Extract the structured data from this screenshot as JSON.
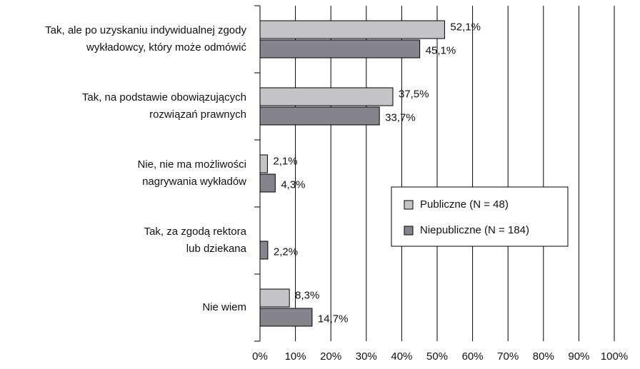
{
  "chart_data": {
    "type": "bar",
    "orientation": "horizontal",
    "categories": [
      [
        "Tak, ale po uzyskaniu indywidualnej zgody",
        "wykładowcy, który może odmówić"
      ],
      [
        "Tak, na podstawie obowiązujących",
        "rozwiązań prawnych"
      ],
      [
        "Nie, nie ma możliwości",
        "nagrywania wykładów"
      ],
      [
        "Tak, za zgodą rektora",
        "lub dziekana"
      ],
      [
        "Nie wiem"
      ]
    ],
    "series": [
      {
        "name": "Publiczne (N = 48)",
        "color": "#c4c4c8",
        "values": [
          52.1,
          37.5,
          2.1,
          null,
          8.3
        ],
        "value_labels": [
          "52,1%",
          "37,5%",
          "2,1%",
          null,
          "8,3%"
        ]
      },
      {
        "name": "Niepubliczne (N = 184)",
        "color": "#84848c",
        "values": [
          45.1,
          33.7,
          4.3,
          2.2,
          14.7
        ],
        "value_labels": [
          "45,1%",
          "33,7%",
          "4,3%",
          "2,2%",
          "14,7%"
        ]
      }
    ],
    "xlim": [
      0,
      100
    ],
    "xticks": [
      {
        "value": 0,
        "label": "0%"
      },
      {
        "value": 10,
        "label": "10%"
      },
      {
        "value": 20,
        "label": "20%"
      },
      {
        "value": 30,
        "label": "30%"
      },
      {
        "value": 40,
        "label": "40%"
      },
      {
        "value": 50,
        "label": "50%"
      },
      {
        "value": 60,
        "label": "60%"
      },
      {
        "value": 70,
        "label": "70%"
      },
      {
        "value": 80,
        "label": "80%"
      },
      {
        "value": 90,
        "label": "90%"
      },
      {
        "value": 100,
        "label": "100%"
      }
    ],
    "grid": true,
    "legend": "right"
  }
}
